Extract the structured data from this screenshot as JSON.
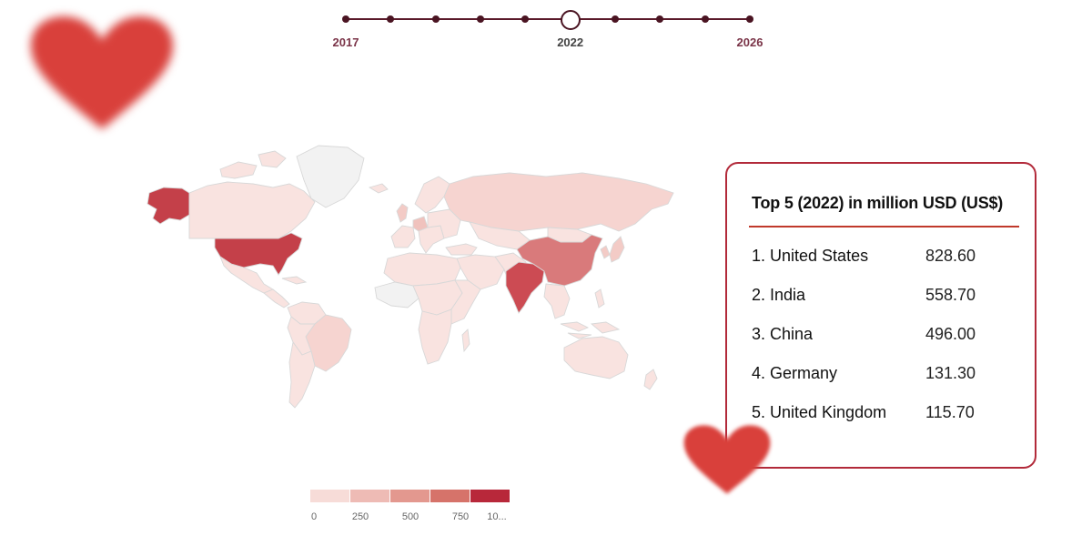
{
  "timeline": {
    "dots": 10,
    "selected_index": 5,
    "labels": [
      {
        "text": "2017",
        "index": 0
      },
      {
        "text": "2022",
        "index": 5
      },
      {
        "text": "2026",
        "index": 9
      }
    ]
  },
  "legend": {
    "ticks": [
      "0",
      "250",
      "500",
      "750",
      "10..."
    ],
    "colors": [
      "#f7dcd8",
      "#eebbb5",
      "#e3988f",
      "#d6736a",
      "#b8283a"
    ]
  },
  "top5": {
    "title": "Top 5 (2022) in million USD (US$)",
    "items": [
      {
        "rank_name": "1. United States",
        "value": "828.60"
      },
      {
        "rank_name": "2. India",
        "value": "558.70"
      },
      {
        "rank_name": "3. China",
        "value": "496.00"
      },
      {
        "rank_name": "4. Germany",
        "value": "131.30"
      },
      {
        "rank_name": "5. United Kingdom",
        "value": "115.70"
      }
    ]
  },
  "colors": {
    "accent": "#b22a3a",
    "timeline": "#4a1422",
    "heart": "#d9403b",
    "no_data": "#f2f2f2",
    "low": "#f9e3e0"
  },
  "icons": [
    "heart-icon",
    "heart-icon"
  ]
}
